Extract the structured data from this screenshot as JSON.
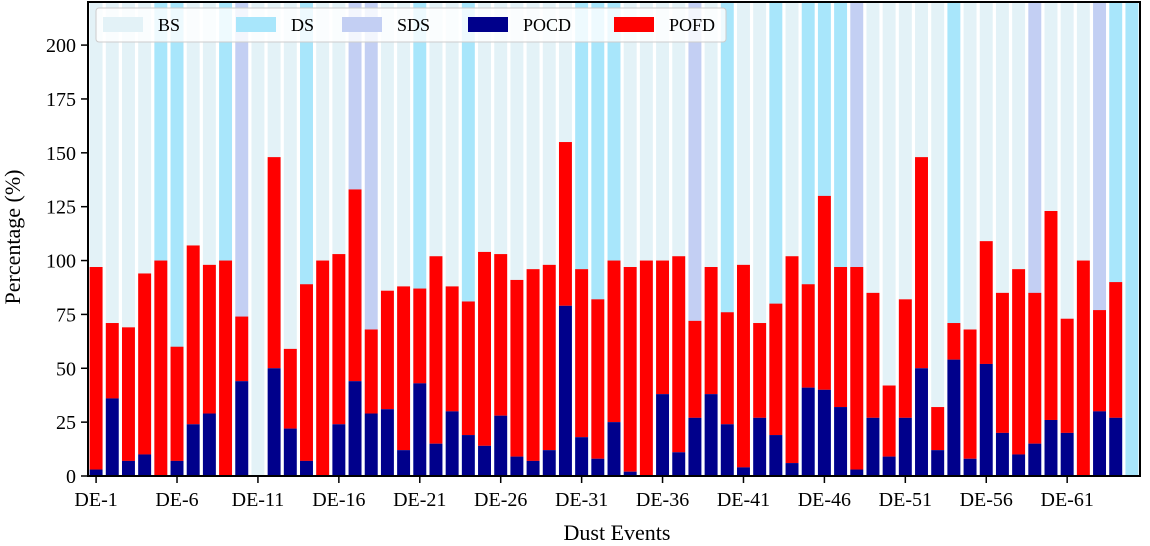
{
  "chart_data": {
    "type": "bar",
    "stacked": true,
    "title": "",
    "xlabel": "Dust Events",
    "ylabel": "Percentage (%)",
    "ylim": [
      0,
      220
    ],
    "yticks": [
      0,
      25,
      50,
      75,
      100,
      125,
      150,
      175,
      200
    ],
    "grid": false,
    "legend_position": "top",
    "categories": [
      "DE-1",
      "DE-2",
      "DE-3",
      "DE-4",
      "DE-5",
      "DE-6",
      "DE-7",
      "DE-8",
      "DE-9",
      "DE-10",
      "DE-11",
      "DE-12",
      "DE-13",
      "DE-14",
      "DE-15",
      "DE-16",
      "DE-17",
      "DE-18",
      "DE-19",
      "DE-20",
      "DE-21",
      "DE-22",
      "DE-23",
      "DE-24",
      "DE-25",
      "DE-26",
      "DE-27",
      "DE-28",
      "DE-29",
      "DE-30",
      "DE-31",
      "DE-32",
      "DE-33",
      "DE-34",
      "DE-35",
      "DE-36",
      "DE-37",
      "DE-38",
      "DE-39",
      "DE-40",
      "DE-41",
      "DE-42",
      "DE-43",
      "DE-44",
      "DE-45",
      "DE-46",
      "DE-47",
      "DE-48",
      "DE-49",
      "DE-50",
      "DE-51",
      "DE-52",
      "DE-53",
      "DE-54",
      "DE-55",
      "DE-56",
      "DE-57",
      "DE-58",
      "DE-59",
      "DE-60",
      "DE-61",
      "DE-62",
      "DE-63",
      "DE-64",
      "DE-65"
    ],
    "x_tick_labels": [
      "DE-1",
      "DE-6",
      "DE-11",
      "DE-16",
      "DE-21",
      "DE-26",
      "DE-31",
      "DE-36",
      "DE-41",
      "DE-46",
      "DE-51",
      "DE-56",
      "DE-61"
    ],
    "x_tick_indices": [
      0,
      5,
      10,
      15,
      20,
      25,
      30,
      35,
      40,
      45,
      50,
      55,
      60
    ],
    "background_class": [
      "BS",
      "BS",
      "BS",
      "BS",
      "DS",
      "DS",
      "BS",
      "BS",
      "DS",
      "SDS",
      "BS",
      "BS",
      "BS",
      "DS",
      "BS",
      "BS",
      "SDS",
      "SDS",
      "BS",
      "BS",
      "DS",
      "BS",
      "BS",
      "DS",
      "BS",
      "BS",
      "BS",
      "BS",
      "BS",
      "BS",
      "DS",
      "DS",
      "DS",
      "BS",
      "BS",
      "BS",
      "BS",
      "SDS",
      "BS",
      "DS",
      "BS",
      "BS",
      "DS",
      "BS",
      "DS",
      "DS",
      "DS",
      "SDS",
      "BS",
      "BS",
      "BS",
      "BS",
      "BS",
      "DS",
      "BS",
      "BS",
      "BS",
      "BS",
      "SDS",
      "BS",
      "BS",
      "BS",
      "SDS",
      "DS",
      "DS"
    ],
    "background_value": 220,
    "series": [
      {
        "name": "BS",
        "color": "#e3f2f7",
        "kind": "background"
      },
      {
        "name": "DS",
        "color": "#a8e6fb",
        "kind": "background"
      },
      {
        "name": "SDS",
        "color": "#c3cff3",
        "kind": "background"
      },
      {
        "name": "POCD",
        "color": "#00008b",
        "kind": "bar",
        "values": [
          3,
          36,
          7,
          10,
          0,
          7,
          24,
          29,
          0,
          44,
          0,
          50,
          22,
          7,
          0,
          24,
          44,
          29,
          31,
          12,
          43,
          15,
          30,
          19,
          14,
          28,
          9,
          7,
          12,
          79,
          18,
          8,
          25,
          2,
          0,
          38,
          11,
          27,
          38,
          24,
          4,
          27,
          19,
          6,
          41,
          40,
          32,
          3,
          27,
          9,
          27,
          50,
          12,
          54,
          8,
          52,
          20,
          10,
          15,
          26,
          20,
          0,
          30,
          27,
          0
        ]
      },
      {
        "name": "POFD",
        "color": "#ff0000",
        "kind": "bar",
        "values": [
          94,
          35,
          62,
          84,
          100,
          53,
          83,
          69,
          100,
          30,
          0,
          98,
          37,
          82,
          100,
          79,
          89,
          39,
          55,
          76,
          44,
          87,
          58,
          62,
          90,
          75,
          82,
          89,
          86,
          76,
          78,
          74,
          75,
          95,
          100,
          62,
          91,
          45,
          59,
          52,
          94,
          44,
          61,
          96,
          48,
          90,
          65,
          94,
          58,
          33,
          55,
          98,
          20,
          17,
          60,
          57,
          65,
          86,
          70,
          97,
          53,
          100,
          47,
          63,
          0
        ]
      }
    ]
  }
}
